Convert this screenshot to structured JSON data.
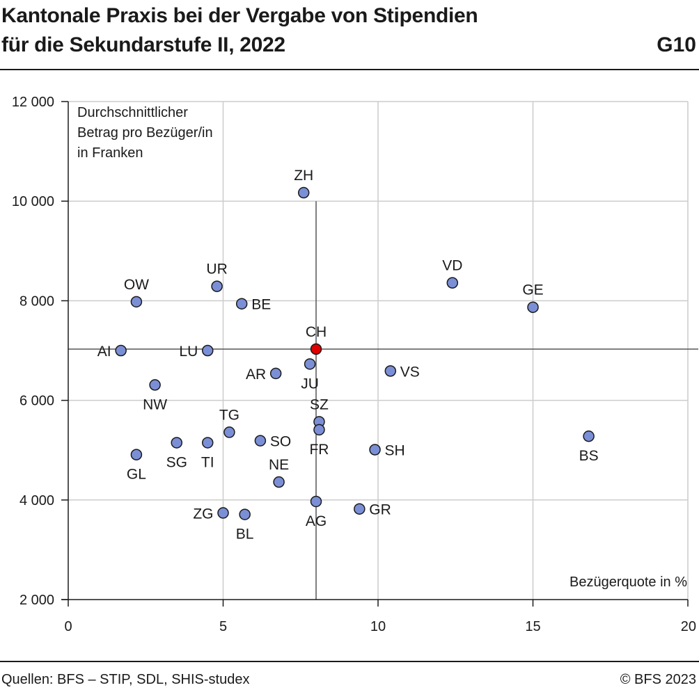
{
  "header": {
    "title_line1": "Kantonale Praxis bei der Vergabe von Stipendien",
    "title_line2": "für die Sekundarstufe II, 2022",
    "code": "G10"
  },
  "footer": {
    "source": "Quellen: BFS – STIP, SDL, SHIS-studex",
    "copyright": "© BFS 2023"
  },
  "colors": {
    "point": "#7b8fd6",
    "highlight": "#e00000",
    "grid": "#cccccc",
    "reference": "#555555"
  },
  "chart_data": {
    "type": "scatter",
    "ylabel_lines": [
      "Durchschnittlicher",
      "Betrag pro Bezüger/in",
      "in Franken"
    ],
    "xlabel": "Bezügerquote in %",
    "xlim": [
      0,
      20
    ],
    "ylim": [
      2000,
      12000
    ],
    "x_ticks": [
      0,
      5,
      10,
      15,
      20
    ],
    "x_tick_labels": [
      "0",
      "5",
      "10",
      "15",
      "20"
    ],
    "y_ticks": [
      2000,
      4000,
      6000,
      8000,
      10000,
      12000
    ],
    "y_tick_labels": [
      "2 000",
      "4 000",
      "6 000",
      "8 000",
      "10 000",
      "12 000"
    ],
    "grid": true,
    "reference_lines": {
      "x": 8.0,
      "y": 7030
    },
    "points": [
      {
        "label": "ZH",
        "x": 7.6,
        "y": 10170,
        "pos": "above"
      },
      {
        "label": "VD",
        "x": 12.4,
        "y": 8360,
        "pos": "above"
      },
      {
        "label": "GE",
        "x": 15.0,
        "y": 7870,
        "pos": "above"
      },
      {
        "label": "OW",
        "x": 2.2,
        "y": 7980,
        "pos": "above"
      },
      {
        "label": "UR",
        "x": 4.8,
        "y": 8290,
        "pos": "above"
      },
      {
        "label": "BE",
        "x": 5.6,
        "y": 7940,
        "pos": "right"
      },
      {
        "label": "AI",
        "x": 1.7,
        "y": 7000,
        "pos": "left"
      },
      {
        "label": "LU",
        "x": 4.5,
        "y": 7000,
        "pos": "left"
      },
      {
        "label": "CH",
        "x": 8.0,
        "y": 7030,
        "pos": "above",
        "highlight": true
      },
      {
        "label": "AR",
        "x": 6.7,
        "y": 6540,
        "pos": "left"
      },
      {
        "label": "JU",
        "x": 7.8,
        "y": 6730,
        "pos": "below"
      },
      {
        "label": "VS",
        "x": 10.4,
        "y": 6590,
        "pos": "right"
      },
      {
        "label": "NW",
        "x": 2.8,
        "y": 6310,
        "pos": "below"
      },
      {
        "label": "SZ",
        "x": 8.1,
        "y": 5570,
        "pos": "above"
      },
      {
        "label": "FR",
        "x": 8.1,
        "y": 5410,
        "pos": "below"
      },
      {
        "label": "TG",
        "x": 5.2,
        "y": 5360,
        "pos": "above"
      },
      {
        "label": "SO",
        "x": 6.2,
        "y": 5190,
        "pos": "right"
      },
      {
        "label": "SG",
        "x": 3.5,
        "y": 5150,
        "pos": "below"
      },
      {
        "label": "TI",
        "x": 4.5,
        "y": 5150,
        "pos": "below"
      },
      {
        "label": "SH",
        "x": 9.9,
        "y": 5010,
        "pos": "right"
      },
      {
        "label": "BS",
        "x": 16.8,
        "y": 5280,
        "pos": "below"
      },
      {
        "label": "GL",
        "x": 2.2,
        "y": 4910,
        "pos": "below"
      },
      {
        "label": "NE",
        "x": 6.8,
        "y": 4360,
        "pos": "above"
      },
      {
        "label": "AG",
        "x": 8.0,
        "y": 3970,
        "pos": "below"
      },
      {
        "label": "GR",
        "x": 9.4,
        "y": 3820,
        "pos": "right"
      },
      {
        "label": "ZG",
        "x": 5.0,
        "y": 3740,
        "pos": "left"
      },
      {
        "label": "BL",
        "x": 5.7,
        "y": 3710,
        "pos": "below"
      }
    ]
  }
}
